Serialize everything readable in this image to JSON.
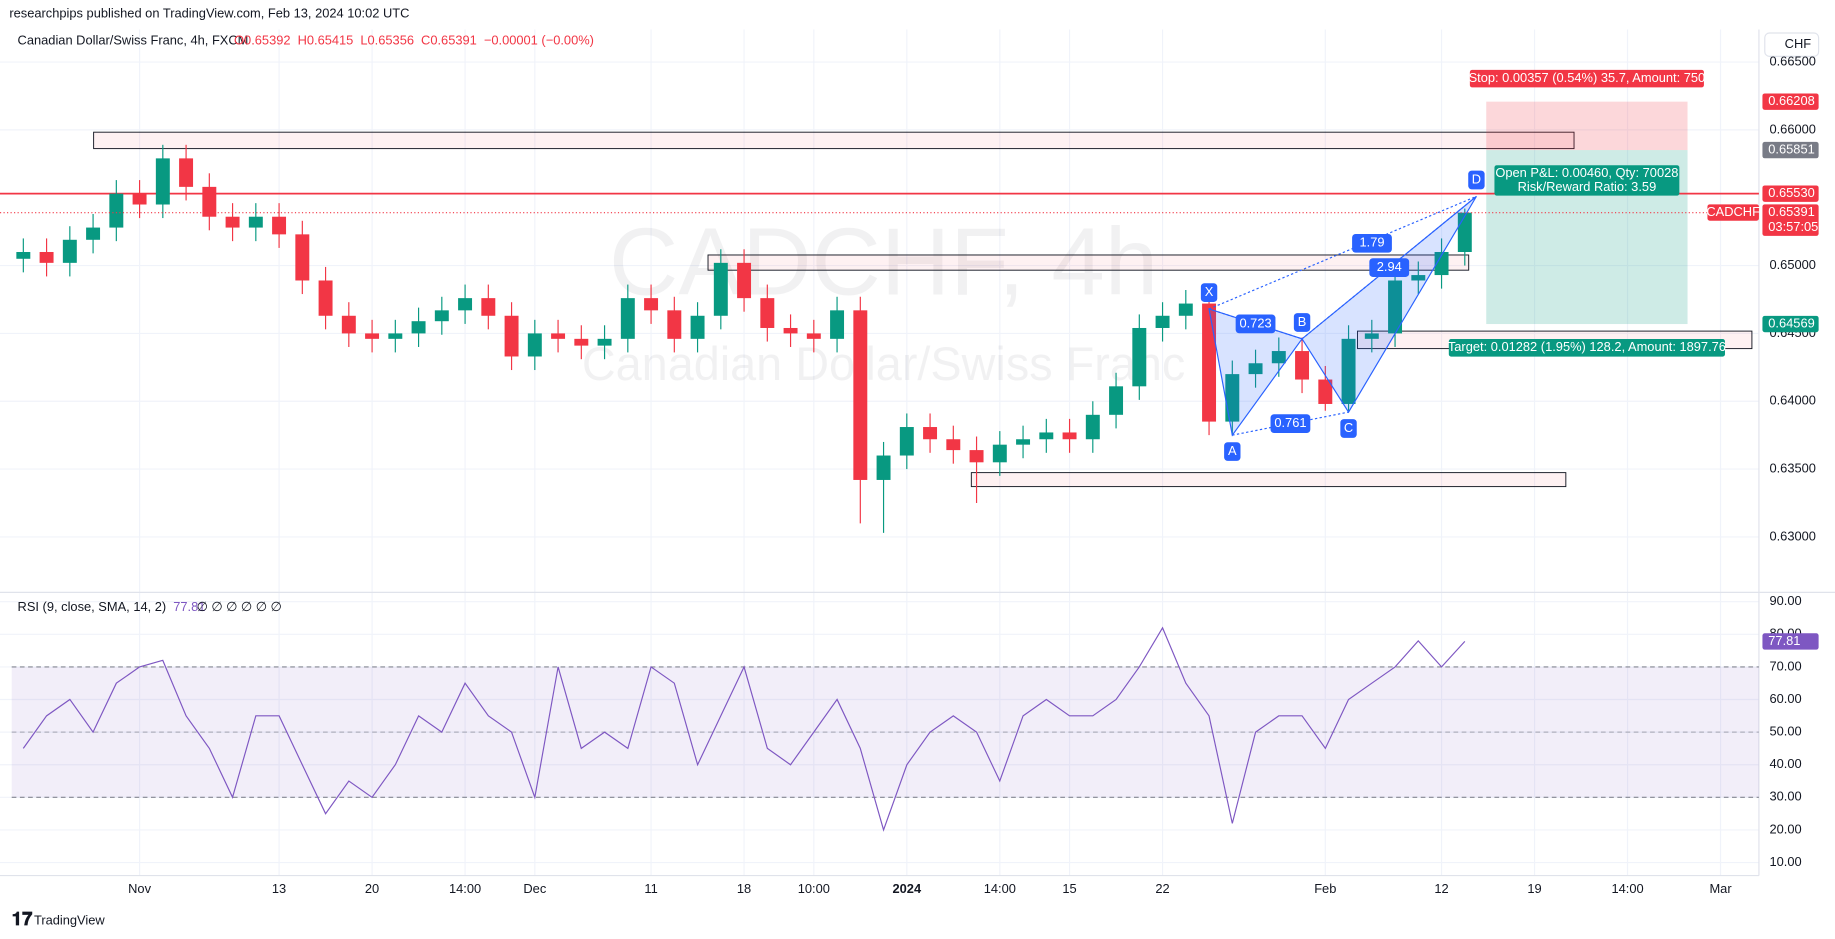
{
  "header": {
    "published": "researchpips published on TradingView.com, Feb 13, 2024 10:02 UTC",
    "symbol": "Canadian Dollar/Swiss Franc, 4h, FXCM",
    "ohlc": [
      "O0.65392",
      "H0.65415",
      "L0.65356",
      "C0.65391",
      "−0.00001 (−0.00%)"
    ],
    "currency": "CHF",
    "watermark": "CADCHF, 4h",
    "watermark_sub": "Canadian Dollar/Swiss Franc",
    "footer": "TradingView"
  },
  "chart_data": [
    {
      "type": "candlestick",
      "up_color": "#089981",
      "down_color": "#f23645",
      "categories": [
        null,
        null,
        null,
        null,
        null,
        "Nov",
        null,
        null,
        null,
        null,
        null,
        "13",
        null,
        null,
        null,
        "20",
        null,
        null,
        null,
        "14:00",
        null,
        null,
        "Dec",
        null,
        null,
        null,
        null,
        "11",
        null,
        null,
        null,
        "18",
        null,
        null,
        "10:00",
        null,
        null,
        null,
        "2024",
        null,
        null,
        null,
        "14:00",
        null,
        null,
        "15",
        null,
        null,
        null,
        "22",
        null,
        null,
        null,
        null,
        null,
        null,
        "Feb",
        null,
        null,
        null,
        null,
        "12",
        null,
        null,
        null,
        "19",
        null,
        null,
        null,
        "14:00",
        null,
        null,
        null,
        "Mar",
        null
      ],
      "open": [
        0.6505,
        0.651,
        0.6502,
        0.6519,
        0.6528,
        0.6553,
        0.6545,
        0.6579,
        0.6558,
        0.6536,
        0.6528,
        0.6536,
        0.6523,
        0.6489,
        0.6463,
        0.645,
        0.6446,
        0.645,
        0.6459,
        0.6467,
        0.6476,
        0.6463,
        0.6433,
        0.645,
        0.6446,
        0.6441,
        0.6446,
        0.6476,
        0.6467,
        0.6446,
        0.6463,
        0.6502,
        0.6476,
        0.6454,
        0.645,
        0.6446,
        0.6467,
        0.6342,
        0.636,
        0.6381,
        0.6372,
        0.6364,
        0.6355,
        0.6368,
        0.6372,
        0.6377,
        0.6372,
        0.639,
        0.6411,
        0.6454,
        0.6463,
        0.6472,
        0.6385,
        0.642,
        0.6428,
        0.6437,
        0.6416,
        0.6398,
        0.6446,
        0.645,
        0.6489,
        0.6493,
        0.651,
        null,
        null,
        null,
        null,
        null,
        null,
        null,
        null,
        null,
        null,
        null,
        null
      ],
      "high": [
        0.652,
        0.652,
        0.6529,
        0.6538,
        0.6563,
        0.6563,
        0.6589,
        0.6589,
        0.6568,
        0.6546,
        0.6546,
        0.6546,
        0.6533,
        0.6499,
        0.6473,
        0.646,
        0.646,
        0.6469,
        0.6477,
        0.6486,
        0.6486,
        0.6473,
        0.646,
        0.646,
        0.6456,
        0.6456,
        0.6486,
        0.6486,
        0.6477,
        0.6473,
        0.6512,
        0.6512,
        0.6486,
        0.6464,
        0.646,
        0.6477,
        0.6477,
        0.637,
        0.6391,
        0.6391,
        0.6382,
        0.6374,
        0.6378,
        0.6382,
        0.6387,
        0.6387,
        0.64,
        0.6421,
        0.6464,
        0.6473,
        0.6482,
        0.6482,
        0.643,
        0.6438,
        0.6447,
        0.6447,
        0.6426,
        0.6456,
        0.646,
        0.6499,
        0.6503,
        0.652,
        0.6542,
        null,
        null,
        null,
        null,
        null,
        null,
        null,
        null,
        null,
        null,
        null,
        null
      ],
      "low": [
        0.6495,
        0.6492,
        0.6492,
        0.6509,
        0.6518,
        0.6535,
        0.6535,
        0.6548,
        0.6526,
        0.6518,
        0.6518,
        0.6513,
        0.6479,
        0.6453,
        0.644,
        0.6436,
        0.6436,
        0.644,
        0.6449,
        0.6457,
        0.6453,
        0.6423,
        0.6423,
        0.6436,
        0.6431,
        0.6431,
        0.6436,
        0.6457,
        0.6436,
        0.6436,
        0.6453,
        0.6466,
        0.6444,
        0.644,
        0.6436,
        0.6436,
        0.631,
        0.6303,
        0.635,
        0.6362,
        0.6354,
        0.6325,
        0.6345,
        0.6358,
        0.6362,
        0.6362,
        0.6362,
        0.638,
        0.6401,
        0.6444,
        0.6453,
        0.6375,
        0.6375,
        0.641,
        0.6418,
        0.6406,
        0.6393,
        0.6393,
        0.6436,
        0.644,
        0.6479,
        0.6483,
        0.65,
        null,
        null,
        null,
        null,
        null,
        null,
        null,
        null,
        null,
        null,
        null,
        null
      ],
      "close": [
        0.651,
        0.6502,
        0.6519,
        0.6528,
        0.6553,
        0.6545,
        0.6579,
        0.6558,
        0.6536,
        0.6528,
        0.6536,
        0.6523,
        0.6489,
        0.6463,
        0.645,
        0.6446,
        0.645,
        0.6459,
        0.6467,
        0.6476,
        0.6463,
        0.6433,
        0.645,
        0.6446,
        0.6441,
        0.6446,
        0.6476,
        0.6467,
        0.6446,
        0.6463,
        0.6502,
        0.6476,
        0.6454,
        0.645,
        0.6446,
        0.6467,
        0.6342,
        0.636,
        0.6381,
        0.6372,
        0.6364,
        0.6355,
        0.6368,
        0.6372,
        0.6377,
        0.6372,
        0.639,
        0.6411,
        0.6454,
        0.6463,
        0.6472,
        0.6385,
        0.642,
        0.6428,
        0.6437,
        0.6416,
        0.6398,
        0.6446,
        0.645,
        0.6489,
        0.6493,
        0.651,
        0.6539,
        null,
        null,
        null,
        null,
        null,
        null,
        null,
        null,
        null,
        null,
        null,
        null
      ],
      "ylim": [
        0.626,
        0.6674
      ],
      "yticks": [
        {
          "value": 0.63,
          "label": "0.63000"
        },
        {
          "value": 0.635,
          "label": "0.63500"
        },
        {
          "value": 0.64,
          "label": "0.64000"
        },
        {
          "value": 0.645,
          "label": "0.64500"
        },
        {
          "value": 0.65,
          "label": "0.65000"
        },
        {
          "value": 0.66,
          "label": "0.66000"
        },
        {
          "value": 0.665,
          "label": "0.66500"
        }
      ],
      "hline": {
        "value": 0.6553,
        "color": "#f23645"
      },
      "symbol_tag": "CADCHF",
      "countdown": "03:57:05",
      "price_labels": [
        {
          "value": 0.66208,
          "label": "0.66208",
          "color": "#f23645"
        },
        {
          "value": 0.65851,
          "label": "0.65851",
          "color": "#787b86"
        },
        {
          "value": 0.6553,
          "label": "0.65530",
          "color": "#f23645"
        },
        {
          "value": 0.65391,
          "label": "0.65391",
          "color": "#f23645"
        },
        {
          "value": 0.64569,
          "label": "0.64569",
          "color": "#089981"
        }
      ],
      "zones": [
        {
          "top": 0.65983,
          "bottom": 0.65862
        },
        {
          "top": 0.65078,
          "bottom": 0.64966
        },
        {
          "top": 0.64517,
          "bottom": 0.64388
        },
        {
          "top": 0.63474,
          "bottom": 0.63371
        }
      ],
      "position": {
        "stop": 0.66208,
        "entry": 0.65851,
        "target": 0.64569,
        "stop_label": "Stop: 0.00357 (0.54%) 35.7, Amount: 750",
        "pnl_label": "Open P&L: 0.00460, Qty: 70028",
        "rr_label": "Risk/Reward Ratio: 3.59",
        "target_label": "Target: 0.01282 (1.95%) 128.2, Amount: 1897.76"
      },
      "pattern": {
        "color": "#2962ff",
        "points": [
          {
            "label": "X",
            "x": 51,
            "y": 0.6468
          },
          {
            "label": "A",
            "x": 52,
            "y": 0.6375
          },
          {
            "label": "B",
            "x": 55,
            "y": 0.6446
          },
          {
            "label": "C",
            "x": 57,
            "y": 0.6392
          },
          {
            "label": "D",
            "x": 62.5,
            "y": 0.6551
          }
        ],
        "ratios": [
          0.723,
          0.761,
          1.79,
          2.94
        ]
      }
    },
    {
      "type": "line",
      "title": "RSI (9, close, SMA, 14, 2)",
      "last_value": 77.81,
      "placeholders": "∅ ∅ ∅ ∅ ∅ ∅",
      "color": "#7e57c2",
      "values": [
        45,
        55,
        60,
        50,
        65,
        70,
        72,
        55,
        45,
        30,
        55,
        55,
        40,
        25,
        35,
        30,
        40,
        55,
        50,
        65,
        55,
        50,
        30,
        70,
        45,
        50,
        45,
        70,
        65,
        40,
        55,
        70,
        45,
        40,
        50,
        60,
        45,
        20,
        40,
        50,
        55,
        50,
        35,
        55,
        60,
        55,
        55,
        60,
        70,
        82,
        65,
        55,
        22,
        50,
        55,
        55,
        45,
        60,
        65,
        70,
        78,
        70,
        77.81,
        null,
        null,
        null,
        null,
        null,
        null,
        null,
        null,
        null,
        null,
        null,
        null
      ],
      "ylim": [
        6,
        92.5
      ],
      "yticks": [
        {
          "value": 10,
          "label": "10.00"
        },
        {
          "value": 20,
          "label": "20.00"
        },
        {
          "value": 30,
          "label": "30.00"
        },
        {
          "value": 40,
          "label": "40.00"
        },
        {
          "value": 50,
          "label": "50.00"
        },
        {
          "value": 60,
          "label": "60.00"
        },
        {
          "value": 70,
          "label": "70.00"
        },
        {
          "value": 80,
          "label": "80.00"
        },
        {
          "value": 90,
          "label": "90.00"
        }
      ],
      "levels": [
        30,
        50,
        70
      ]
    }
  ]
}
